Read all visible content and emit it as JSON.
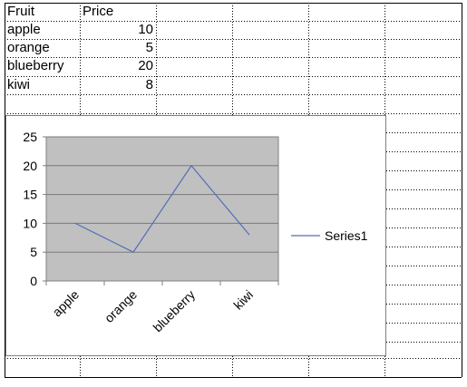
{
  "sheet": {
    "rows": [
      [
        "Fruit",
        "Price"
      ],
      [
        "apple",
        "10"
      ],
      [
        "orange",
        "5"
      ],
      [
        "blueberry",
        "20"
      ],
      [
        "kiwi",
        "8"
      ]
    ]
  },
  "chart_data": {
    "type": "line",
    "categories": [
      "apple",
      "orange",
      "blueberry",
      "kiwi"
    ],
    "series": [
      {
        "name": "Series1",
        "values": [
          10,
          5,
          20,
          8
        ],
        "color": "#4f6fb8"
      }
    ],
    "ylim": [
      0,
      25
    ],
    "yticks": [
      "0",
      "5",
      "10",
      "15",
      "20",
      "25"
    ],
    "grid": true,
    "plot_background": "#c0c0c0",
    "legend_position": "right"
  }
}
